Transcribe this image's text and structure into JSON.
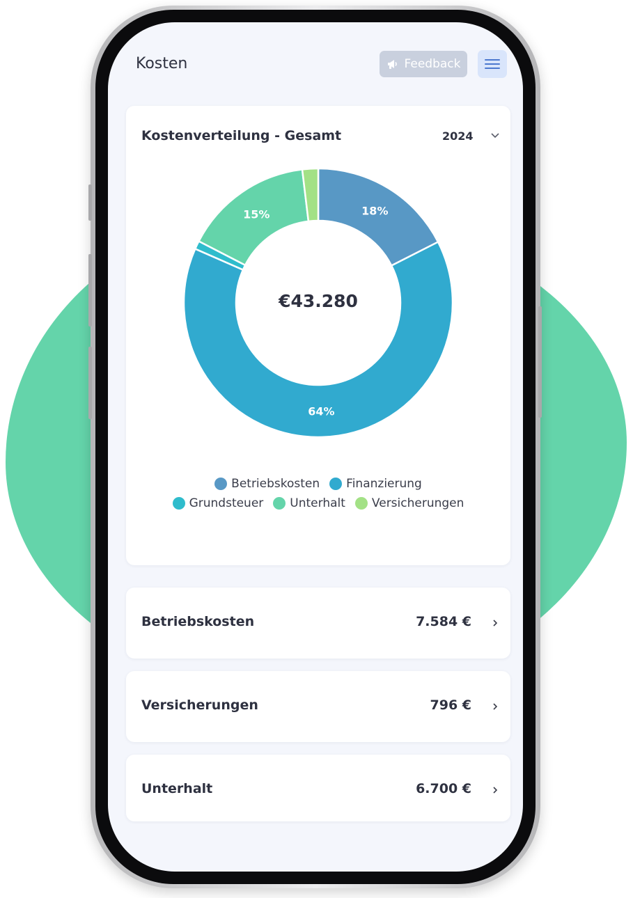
{
  "app": {
    "title": "Kosten",
    "feedback_label": "Feedback",
    "feedback_icon": "megaphone-icon",
    "menu_icon": "hamburger-menu-icon"
  },
  "colors": {
    "background_blob": "#64d4aa",
    "screen_bg": "#f4f6fc",
    "feedback_bg": "#c9d0de",
    "menu_bg": "#d9e5fb",
    "text": "#2e3140"
  },
  "chart_card": {
    "title": "Kostenverteilung - Gesamt",
    "year": "2024",
    "center_total": "€43.280"
  },
  "chart_data": {
    "type": "pie",
    "title": "Kostenverteilung - Gesamt",
    "total": "€43.280",
    "legend_position": "bottom",
    "slices": [
      {
        "name": "Betriebskosten",
        "value": 17.5,
        "label": "18%",
        "color": "#5898c5"
      },
      {
        "name": "Finanzierung",
        "value": 64.0,
        "label": "64%",
        "color": "#31aacf"
      },
      {
        "name": "Grundsteuer",
        "value": 1.0,
        "label": "",
        "color": "#2fbccc"
      },
      {
        "name": "Unterhalt",
        "value": 15.5,
        "label": "15%",
        "color": "#64d4aa"
      },
      {
        "name": "Versicherungen",
        "value": 1.9,
        "label": "",
        "color": "#a3e186"
      }
    ],
    "legend_rows": [
      [
        "Betriebskosten",
        "Finanzierung"
      ],
      [
        "Grundsteuer",
        "Unterhalt",
        "Versicherungen"
      ]
    ]
  },
  "cost_items": [
    {
      "name": "Betriebskosten",
      "amount": "7.584 €"
    },
    {
      "name": "Versicherungen",
      "amount": "796 €"
    },
    {
      "name": "Unterhalt",
      "amount": "6.700 €"
    }
  ]
}
